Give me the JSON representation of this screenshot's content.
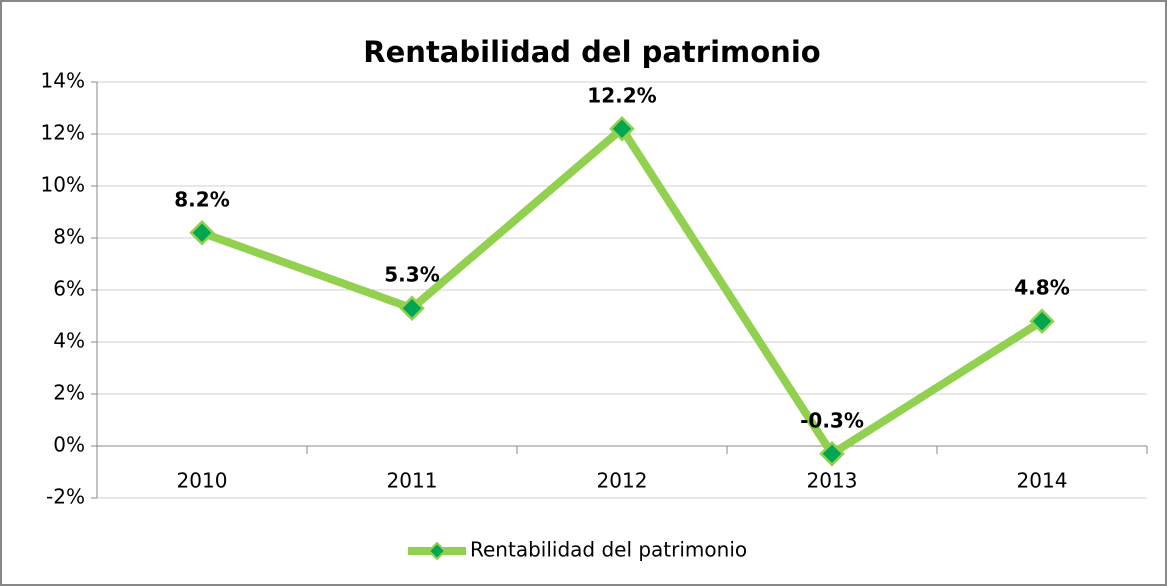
{
  "chart_data": {
    "type": "line",
    "title": "Rentabilidad del patrimonio",
    "categories": [
      "2010",
      "2011",
      "2012",
      "2013",
      "2014"
    ],
    "series": [
      {
        "name": "Rentabilidad del patrimonio",
        "color": "#92d050",
        "marker_color": "#00a651",
        "values": [
          8.2,
          5.3,
          12.2,
          -0.3,
          4.8
        ],
        "value_labels": [
          "8.2%",
          "5.3%",
          "12.2%",
          "-0.3%",
          "4.8%"
        ]
      }
    ],
    "ylim": [
      -2,
      14
    ],
    "yticks": [
      {
        "value": -2,
        "label": "-2%"
      },
      {
        "value": 0,
        "label": "0%"
      },
      {
        "value": 2,
        "label": "2%"
      },
      {
        "value": 4,
        "label": "4%"
      },
      {
        "value": 6,
        "label": "6%"
      },
      {
        "value": 8,
        "label": "8%"
      },
      {
        "value": 10,
        "label": "10%"
      },
      {
        "value": 12,
        "label": "12%"
      },
      {
        "value": 14,
        "label": "14%"
      }
    ],
    "grid": true,
    "legend": "bottom"
  }
}
